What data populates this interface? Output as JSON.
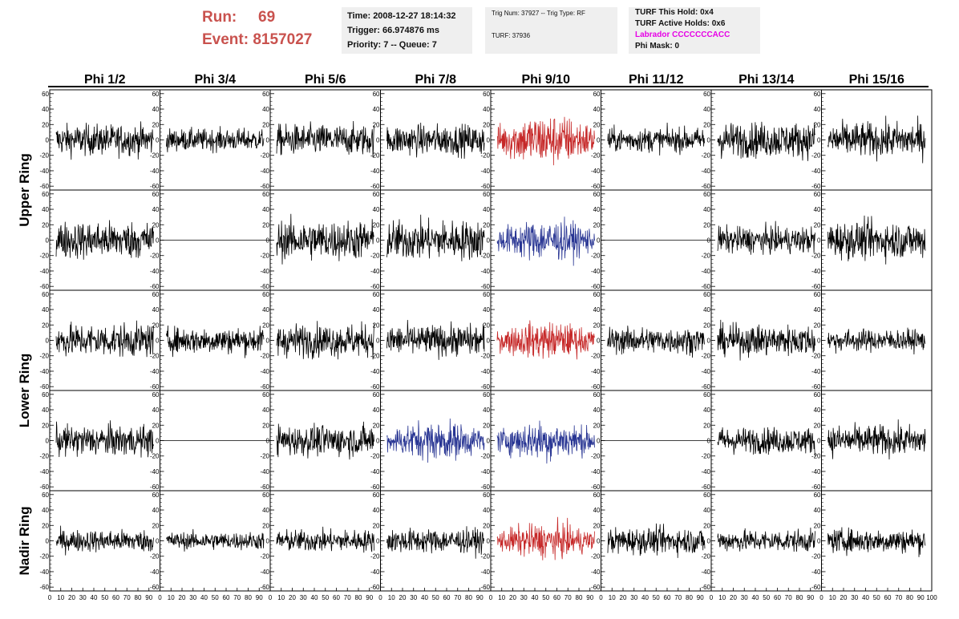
{
  "header": {
    "run_label": "Run:",
    "run_value": "69",
    "event_label": "Event:",
    "event_value": "8157027",
    "time": "Time: 2008-12-27 18:14:32",
    "trigger": "Trigger: 66.974876 ms",
    "priority": "Priority: 7 -- Queue: 7",
    "trig_num": "Trig Num: 37927 -- Trig Type: RF",
    "turf": "TURF: 37936",
    "turf_this_hold": "TURF This Hold: 0x4",
    "turf_active_holds": "TURF Active Holds: 0x6",
    "labrador": "Labrador CCCCCCCACC",
    "phi_mask": "Phi Mask: 0"
  },
  "colors": {
    "run_text": "#c9524e",
    "labrador": "#e600e6",
    "trace_default": "#000000",
    "trace_red": "#c62828",
    "trace_blue": "#283593",
    "info_box_bg": "#efefef"
  },
  "chart_data": {
    "type": "line",
    "columns": [
      "Phi 1/2",
      "Phi 3/4",
      "Phi 5/6",
      "Phi 7/8",
      "Phi 9/10",
      "Phi 11/12",
      "Phi 13/14",
      "Phi 15/16"
    ],
    "rows": [
      "Upper Ring",
      "Lower Ring",
      "Nadir Ring"
    ],
    "ylim": [
      -65,
      65
    ],
    "xlim": [
      0,
      100
    ],
    "y_ticks": [
      -60,
      -40,
      -20,
      0,
      20,
      40,
      60
    ],
    "x_ticks": [
      0,
      10,
      20,
      30,
      40,
      50,
      60,
      70,
      80,
      90,
      100
    ],
    "samples": 260,
    "trace_ylim_note": "",
    "panels": [
      [
        {
          "color": "black",
          "amp": 14,
          "flat": false
        },
        {
          "color": "black",
          "amp": 10,
          "flat": false
        },
        {
          "color": "black",
          "amp": 14,
          "flat": false
        },
        {
          "color": "black",
          "amp": 14,
          "flat": false
        },
        {
          "color": "red",
          "amp": 24,
          "flat": false
        },
        {
          "color": "black",
          "amp": 11,
          "flat": false
        },
        {
          "color": "black",
          "amp": 16,
          "flat": false
        },
        {
          "color": "black",
          "amp": 16,
          "flat": false
        }
      ],
      [
        {
          "color": "black",
          "amp": 17,
          "flat": false
        },
        {
          "color": "black",
          "amp": 0,
          "flat": true
        },
        {
          "color": "black",
          "amp": 18,
          "flat": false
        },
        {
          "color": "black",
          "amp": 18,
          "flat": false
        },
        {
          "color": "blue",
          "amp": 19,
          "flat": false
        },
        {
          "color": "black",
          "amp": 0,
          "flat": true
        },
        {
          "color": "black",
          "amp": 12,
          "flat": false
        },
        {
          "color": "black",
          "amp": 17,
          "flat": false
        }
      ],
      [
        {
          "color": "black",
          "amp": 15,
          "flat": false
        },
        {
          "color": "black",
          "amp": 12,
          "flat": false
        },
        {
          "color": "black",
          "amp": 15,
          "flat": false
        },
        {
          "color": "black",
          "amp": 14,
          "flat": false
        },
        {
          "color": "red",
          "amp": 17,
          "flat": false
        },
        {
          "color": "black",
          "amp": 12,
          "flat": false
        },
        {
          "color": "black",
          "amp": 14,
          "flat": false
        },
        {
          "color": "black",
          "amp": 10,
          "flat": false
        }
      ],
      [
        {
          "color": "black",
          "amp": 14,
          "flat": false
        },
        {
          "color": "black",
          "amp": 0,
          "flat": true
        },
        {
          "color": "black",
          "amp": 14,
          "flat": false
        },
        {
          "color": "blue",
          "amp": 18,
          "flat": false
        },
        {
          "color": "blue",
          "amp": 18,
          "flat": false
        },
        {
          "color": "black",
          "amp": 0,
          "flat": true
        },
        {
          "color": "black",
          "amp": 12,
          "flat": false
        },
        {
          "color": "black",
          "amp": 14,
          "flat": false
        }
      ],
      [
        {
          "color": "black",
          "amp": 10,
          "flat": false
        },
        {
          "color": "black",
          "amp": 8,
          "flat": false
        },
        {
          "color": "black",
          "amp": 10,
          "flat": false
        },
        {
          "color": "black",
          "amp": 11,
          "flat": false
        },
        {
          "color": "red",
          "amp": 16,
          "flat": false
        },
        {
          "color": "black",
          "amp": 12,
          "flat": false
        },
        {
          "color": "black",
          "amp": 10,
          "flat": false
        },
        {
          "color": "black",
          "amp": 11,
          "flat": false
        }
      ]
    ]
  }
}
